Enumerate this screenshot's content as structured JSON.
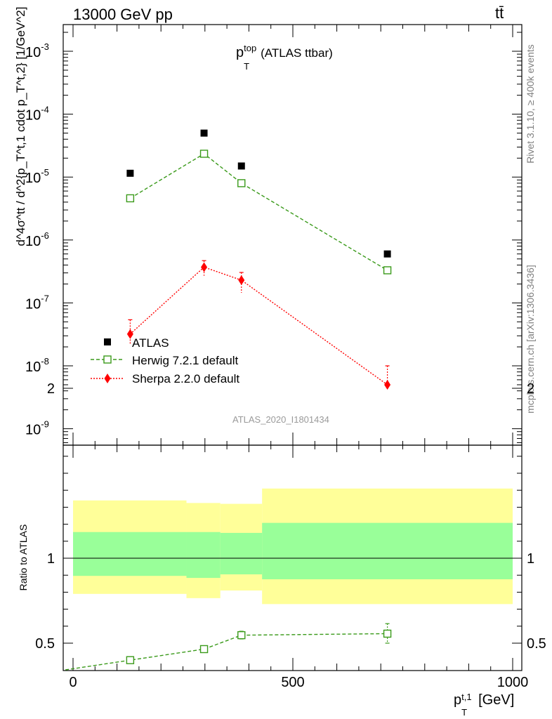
{
  "header": {
    "energy_label": "13000 GeV pp",
    "process_label": "tt̄"
  },
  "side_labels": {
    "rivet": "Rivet 3.1.10, ≥ 400k events",
    "mcplots": "mcplots.cern.ch [arXiv:1306.3436]"
  },
  "chart_data": [
    {
      "type": "scatter",
      "title": "p_T^top (ATLAS ttbar)",
      "title_main": "p",
      "title_sup": "top",
      "title_sub": "T",
      "title_rest": "(ATLAS ttbar)",
      "ylabel": "d^4σ^tt / d^2{p_T^t,1 cdot p_T^t,2} [1/GeV^2]",
      "yscale": "log",
      "ylim": [
        7e-10,
        0.0025
      ],
      "xlim": [
        -20,
        1000
      ],
      "watermark": "ATLAS_2020_I1801434",
      "y_tick_labels": [
        "10^-3",
        "10^-4",
        "10^-5",
        "10^-6",
        "10^-7",
        "10^-8",
        "10^-9"
      ],
      "legend": {
        "placement": "lower-left",
        "entries": [
          "ATLAS",
          "Herwig 7.2.1 default",
          "Sherpa 2.2.0 default"
        ]
      },
      "series": [
        {
          "name": "ATLAS",
          "color": "#000000",
          "marker": "filled-square",
          "x": [
            130,
            298,
            383,
            715
          ],
          "y": [
            1.15e-05,
            5e-05,
            1.5e-05,
            6e-07
          ]
        },
        {
          "name": "Herwig 7.2.1 default",
          "color": "#3a9a1a",
          "marker": "open-square",
          "line": "dashed",
          "x": [
            130,
            298,
            383,
            715
          ],
          "y": [
            4.6e-06,
            2.35e-05,
            8e-06,
            3.3e-07
          ]
        },
        {
          "name": "Sherpa 2.2.0 default",
          "color": "#ff0000",
          "marker": "diamond",
          "line": "dotted",
          "x": [
            130,
            298,
            383,
            715
          ],
          "y": [
            3.2e-08,
            3.7e-07,
            2.3e-07,
            5e-09
          ],
          "err_low": [
            2.2e-08,
            2.7e-07,
            1.45e-07,
            4.3e-09
          ],
          "err_high": [
            5.4e-08,
            4.7e-07,
            3.05e-07,
            1e-08
          ]
        }
      ]
    },
    {
      "type": "scatter",
      "ylabel": "Ratio to ATLAS",
      "xlabel": "p_T^t,1 [GeV]",
      "xlabel_main": "p",
      "xlabel_sup": "t,1",
      "xlabel_sub": "T",
      "xlabel_unit": "[GeV]",
      "xlim": [
        -20,
        1000
      ],
      "ylim": [
        0.44,
        2.2
      ],
      "x_tick_labels": [
        "0",
        "500",
        "1000"
      ],
      "y_tick_labels": [
        "0.5",
        "1",
        "2"
      ],
      "bands": [
        {
          "x_low": 0,
          "x_high": 258,
          "inner": [
            0.896,
            1.154
          ],
          "outer": [
            0.79,
            1.34
          ]
        },
        {
          "x_low": 258,
          "x_high": 335,
          "inner": [
            0.884,
            1.154
          ],
          "outer": [
            0.765,
            1.325
          ]
        },
        {
          "x_low": 335,
          "x_high": 430,
          "inner": [
            0.905,
            1.149
          ],
          "outer": [
            0.81,
            1.32
          ]
        },
        {
          "x_low": 430,
          "x_high": 1000,
          "inner": [
            0.876,
            1.208
          ],
          "outer": [
            0.73,
            1.41
          ]
        }
      ],
      "series": [
        {
          "name": "Herwig 7.2.1 default",
          "color": "#3a9a1a",
          "marker": "open-square",
          "line": "dashed",
          "x": [
            130,
            298,
            383,
            715
          ],
          "y": [
            0.4,
            0.465,
            0.547,
            0.556
          ],
          "err_low": [
            0.39,
            0.455,
            0.525,
            0.5
          ],
          "err_high": [
            0.41,
            0.475,
            0.57,
            0.615
          ]
        }
      ]
    }
  ]
}
